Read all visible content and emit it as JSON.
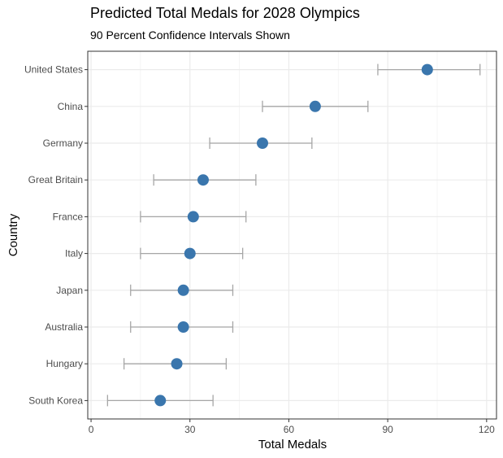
{
  "chart_data": {
    "type": "scatter",
    "title": "Predicted Total Medals for 2028 Olympics",
    "subtitle": "90 Percent Confidence Intervals Shown",
    "xlabel": "Total Medals",
    "ylabel": "Country",
    "xlim": [
      -1,
      123
    ],
    "x_ticks": [
      0,
      30,
      60,
      90,
      120
    ],
    "grid": true,
    "point_color": "#3a76ad",
    "errorbar_color": "#a6a6a6",
    "categories": [
      "United States",
      "China",
      "Germany",
      "Great Britain",
      "France",
      "Italy",
      "Japan",
      "Australia",
      "Hungary",
      "South Korea"
    ],
    "values": [
      102,
      68,
      52,
      34,
      31,
      30,
      28,
      28,
      26,
      21
    ],
    "lower": [
      87,
      52,
      36,
      19,
      15,
      15,
      12,
      12,
      10,
      5
    ],
    "upper": [
      118,
      84,
      67,
      50,
      47,
      46,
      43,
      43,
      41,
      37
    ]
  }
}
